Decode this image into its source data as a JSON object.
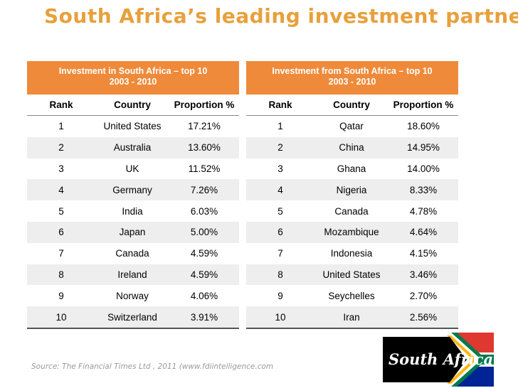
{
  "title": "South Africa’s leading investment partners",
  "left_table": {
    "header_line1": "Investment in South Africa – top 10",
    "header_line2": "2003 - 2010",
    "columns": [
      "Rank",
      "Country",
      "Proportion %"
    ],
    "rows": [
      [
        "1",
        "United States",
        "17.21%"
      ],
      [
        "2",
        "Australia",
        "13.60%"
      ],
      [
        "3",
        "UK",
        "11.52%"
      ],
      [
        "4",
        "Germany",
        "7.26%"
      ],
      [
        "5",
        "India",
        "6.03%"
      ],
      [
        "6",
        "Japan",
        "5.00%"
      ],
      [
        "7",
        "Canada",
        "4.59%"
      ],
      [
        "8",
        "Ireland",
        "4.59%"
      ],
      [
        "9",
        "Norway",
        "4.06%"
      ],
      [
        "10",
        "Switzerland",
        "3.91%"
      ]
    ]
  },
  "right_table": {
    "header_line1": "Investment from South Africa – top 10",
    "header_line2": "2003 - 2010",
    "columns": [
      "Rank",
      "Country",
      "Proportion %"
    ],
    "rows": [
      [
        "1",
        "Qatar",
        "18.60%"
      ],
      [
        "2",
        "China",
        "14.95%"
      ],
      [
        "3",
        "Ghana",
        "14.00%"
      ],
      [
        "4",
        "Nigeria",
        "8.33%"
      ],
      [
        "5",
        "Canada",
        "4.78%"
      ],
      [
        "6",
        "Mozambique",
        "4.64%"
      ],
      [
        "7",
        "Indonesia",
        "4.15%"
      ],
      [
        "8",
        "United States",
        "3.46%"
      ],
      [
        "9",
        "Seychelles",
        "2.70%"
      ],
      [
        "10",
        "Iran",
        "2.56%"
      ]
    ]
  },
  "source": "Source: The Financial Times Ltd , 2011 (www.fdiintelligence.com",
  "logo": {
    "text": "South Africa",
    "icon": "south-africa-flag-logo",
    "colors": {
      "green": "#007a4d",
      "gold": "#ffb612",
      "red": "#de3831",
      "blue": "#002395",
      "black": "#000000"
    }
  }
}
